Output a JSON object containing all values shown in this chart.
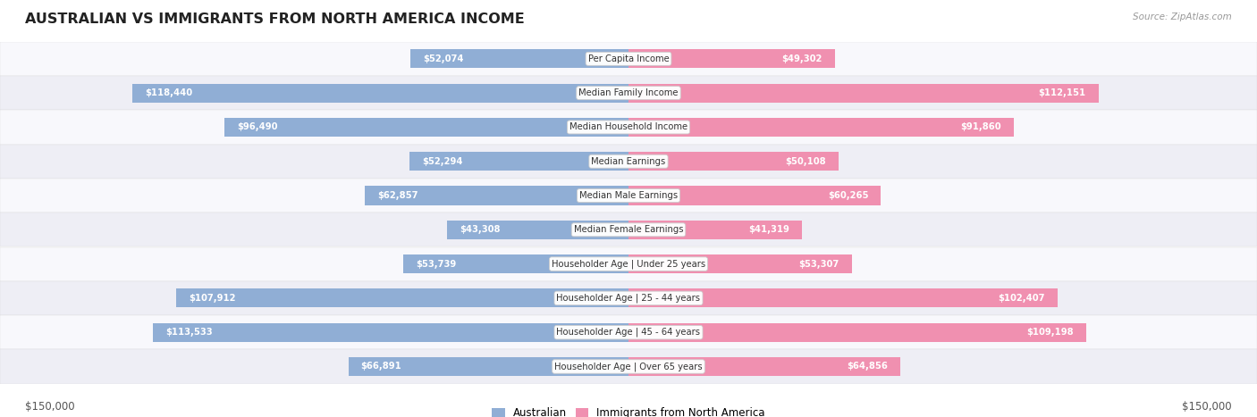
{
  "title": "AUSTRALIAN VS IMMIGRANTS FROM NORTH AMERICA INCOME",
  "source": "Source: ZipAtlas.com",
  "categories": [
    "Per Capita Income",
    "Median Family Income",
    "Median Household Income",
    "Median Earnings",
    "Median Male Earnings",
    "Median Female Earnings",
    "Householder Age | Under 25 years",
    "Householder Age | 25 - 44 years",
    "Householder Age | 45 - 64 years",
    "Householder Age | Over 65 years"
  ],
  "australian_values": [
    52074,
    118440,
    96490,
    52294,
    62857,
    43308,
    53739,
    107912,
    113533,
    66891
  ],
  "immigrant_values": [
    49302,
    112151,
    91860,
    50108,
    60265,
    41319,
    53307,
    102407,
    109198,
    64856
  ],
  "australian_labels": [
    "$52,074",
    "$118,440",
    "$96,490",
    "$52,294",
    "$62,857",
    "$43,308",
    "$53,739",
    "$107,912",
    "$113,533",
    "$66,891"
  ],
  "immigrant_labels": [
    "$49,302",
    "$112,151",
    "$91,860",
    "$50,108",
    "$60,265",
    "$41,319",
    "$53,307",
    "$102,407",
    "$109,198",
    "$64,856"
  ],
  "max_value": 150000,
  "australian_color": "#90aed5",
  "immigrant_color": "#f090b0",
  "row_bg_light": "#f8f8fc",
  "row_bg_dark": "#eeeef5",
  "title_color": "#222222",
  "legend_label_australian": "Australian",
  "legend_label_immigrant": "Immigrants from North America",
  "axis_label_left": "$150,000",
  "axis_label_right": "$150,000",
  "inside_label_threshold": 35000
}
